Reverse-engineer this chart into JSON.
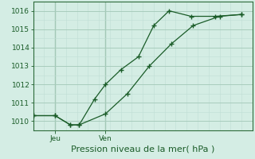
{
  "xlabel": "Pression niveau de la mer( hPa )",
  "background_color": "#d4ede4",
  "grid_color_major": "#a8ccbc",
  "grid_color_minor": "#c0ddd4",
  "line_color": "#1a5c28",
  "spine_color": "#2d6b3a",
  "ylim": [
    1009.5,
    1016.5
  ],
  "xlim": [
    0,
    10.0
  ],
  "yticks": [
    1010,
    1011,
    1012,
    1013,
    1014,
    1015,
    1016
  ],
  "vlines_x": [
    1.0,
    3.3
  ],
  "vline_labels": [
    "Jeu",
    "Ven"
  ],
  "series1_x": [
    0.0,
    1.0,
    1.7,
    2.1,
    2.8,
    3.3,
    4.0,
    4.8,
    5.5,
    6.2,
    7.2,
    8.3,
    9.5
  ],
  "series1_y": [
    1010.3,
    1010.3,
    1009.8,
    1009.8,
    1011.2,
    1012.0,
    1012.8,
    1013.5,
    1015.2,
    1016.0,
    1015.7,
    1015.7,
    1015.8
  ],
  "series2_x": [
    0.0,
    1.0,
    1.7,
    2.1,
    3.3,
    4.3,
    5.3,
    6.3,
    7.3,
    8.5,
    9.5
  ],
  "series2_y": [
    1010.3,
    1010.3,
    1009.8,
    1009.8,
    1010.4,
    1011.5,
    1013.0,
    1014.2,
    1015.2,
    1015.7,
    1015.8
  ],
  "tick_fontsize": 6.5,
  "xlabel_fontsize": 8.0
}
